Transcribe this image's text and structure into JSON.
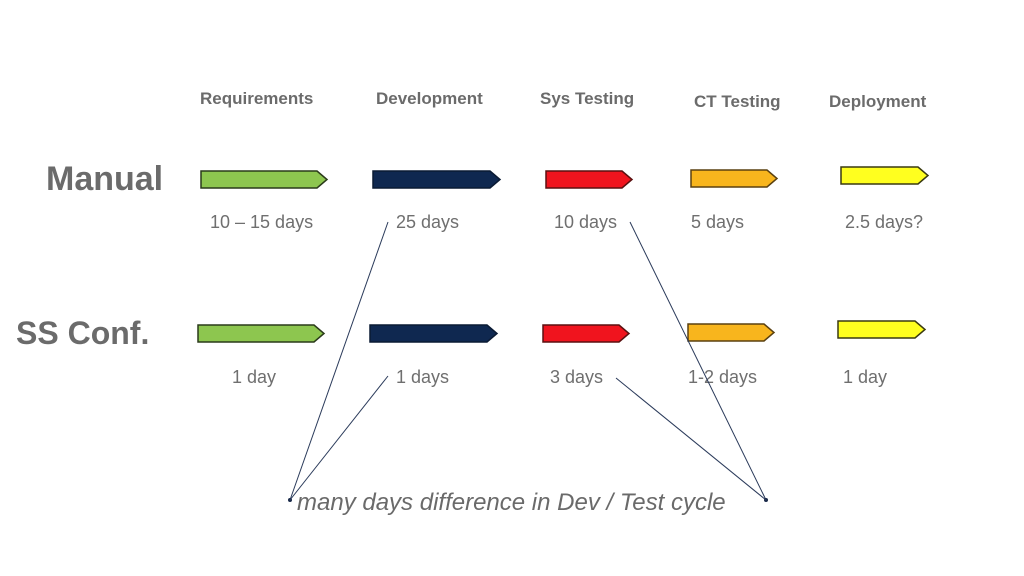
{
  "colors": {
    "requirements": "#8dc64f",
    "development": "#0f2850",
    "sys_testing": "#f0141e",
    "ct_testing": "#f8b51d",
    "deployment": "#ffff1f",
    "outline": "#2a3a1a",
    "text": "#6b6b6b"
  },
  "stages": [
    {
      "label": "Requirements"
    },
    {
      "label": "Development"
    },
    {
      "label": "Sys Testing"
    },
    {
      "label": "CT Testing"
    },
    {
      "label": "Deployment"
    }
  ],
  "rows": [
    {
      "label": "Manual",
      "durations": [
        "10 – 15 days",
        "25 days",
        "10 days",
        "5 days",
        "2.5 days?"
      ]
    },
    {
      "label": "SS Conf.",
      "durations": [
        "1 day",
        "1 days",
        "3 days",
        "1-2 days",
        "1 day"
      ]
    }
  ],
  "caption": "many days difference in Dev / Test cycle"
}
